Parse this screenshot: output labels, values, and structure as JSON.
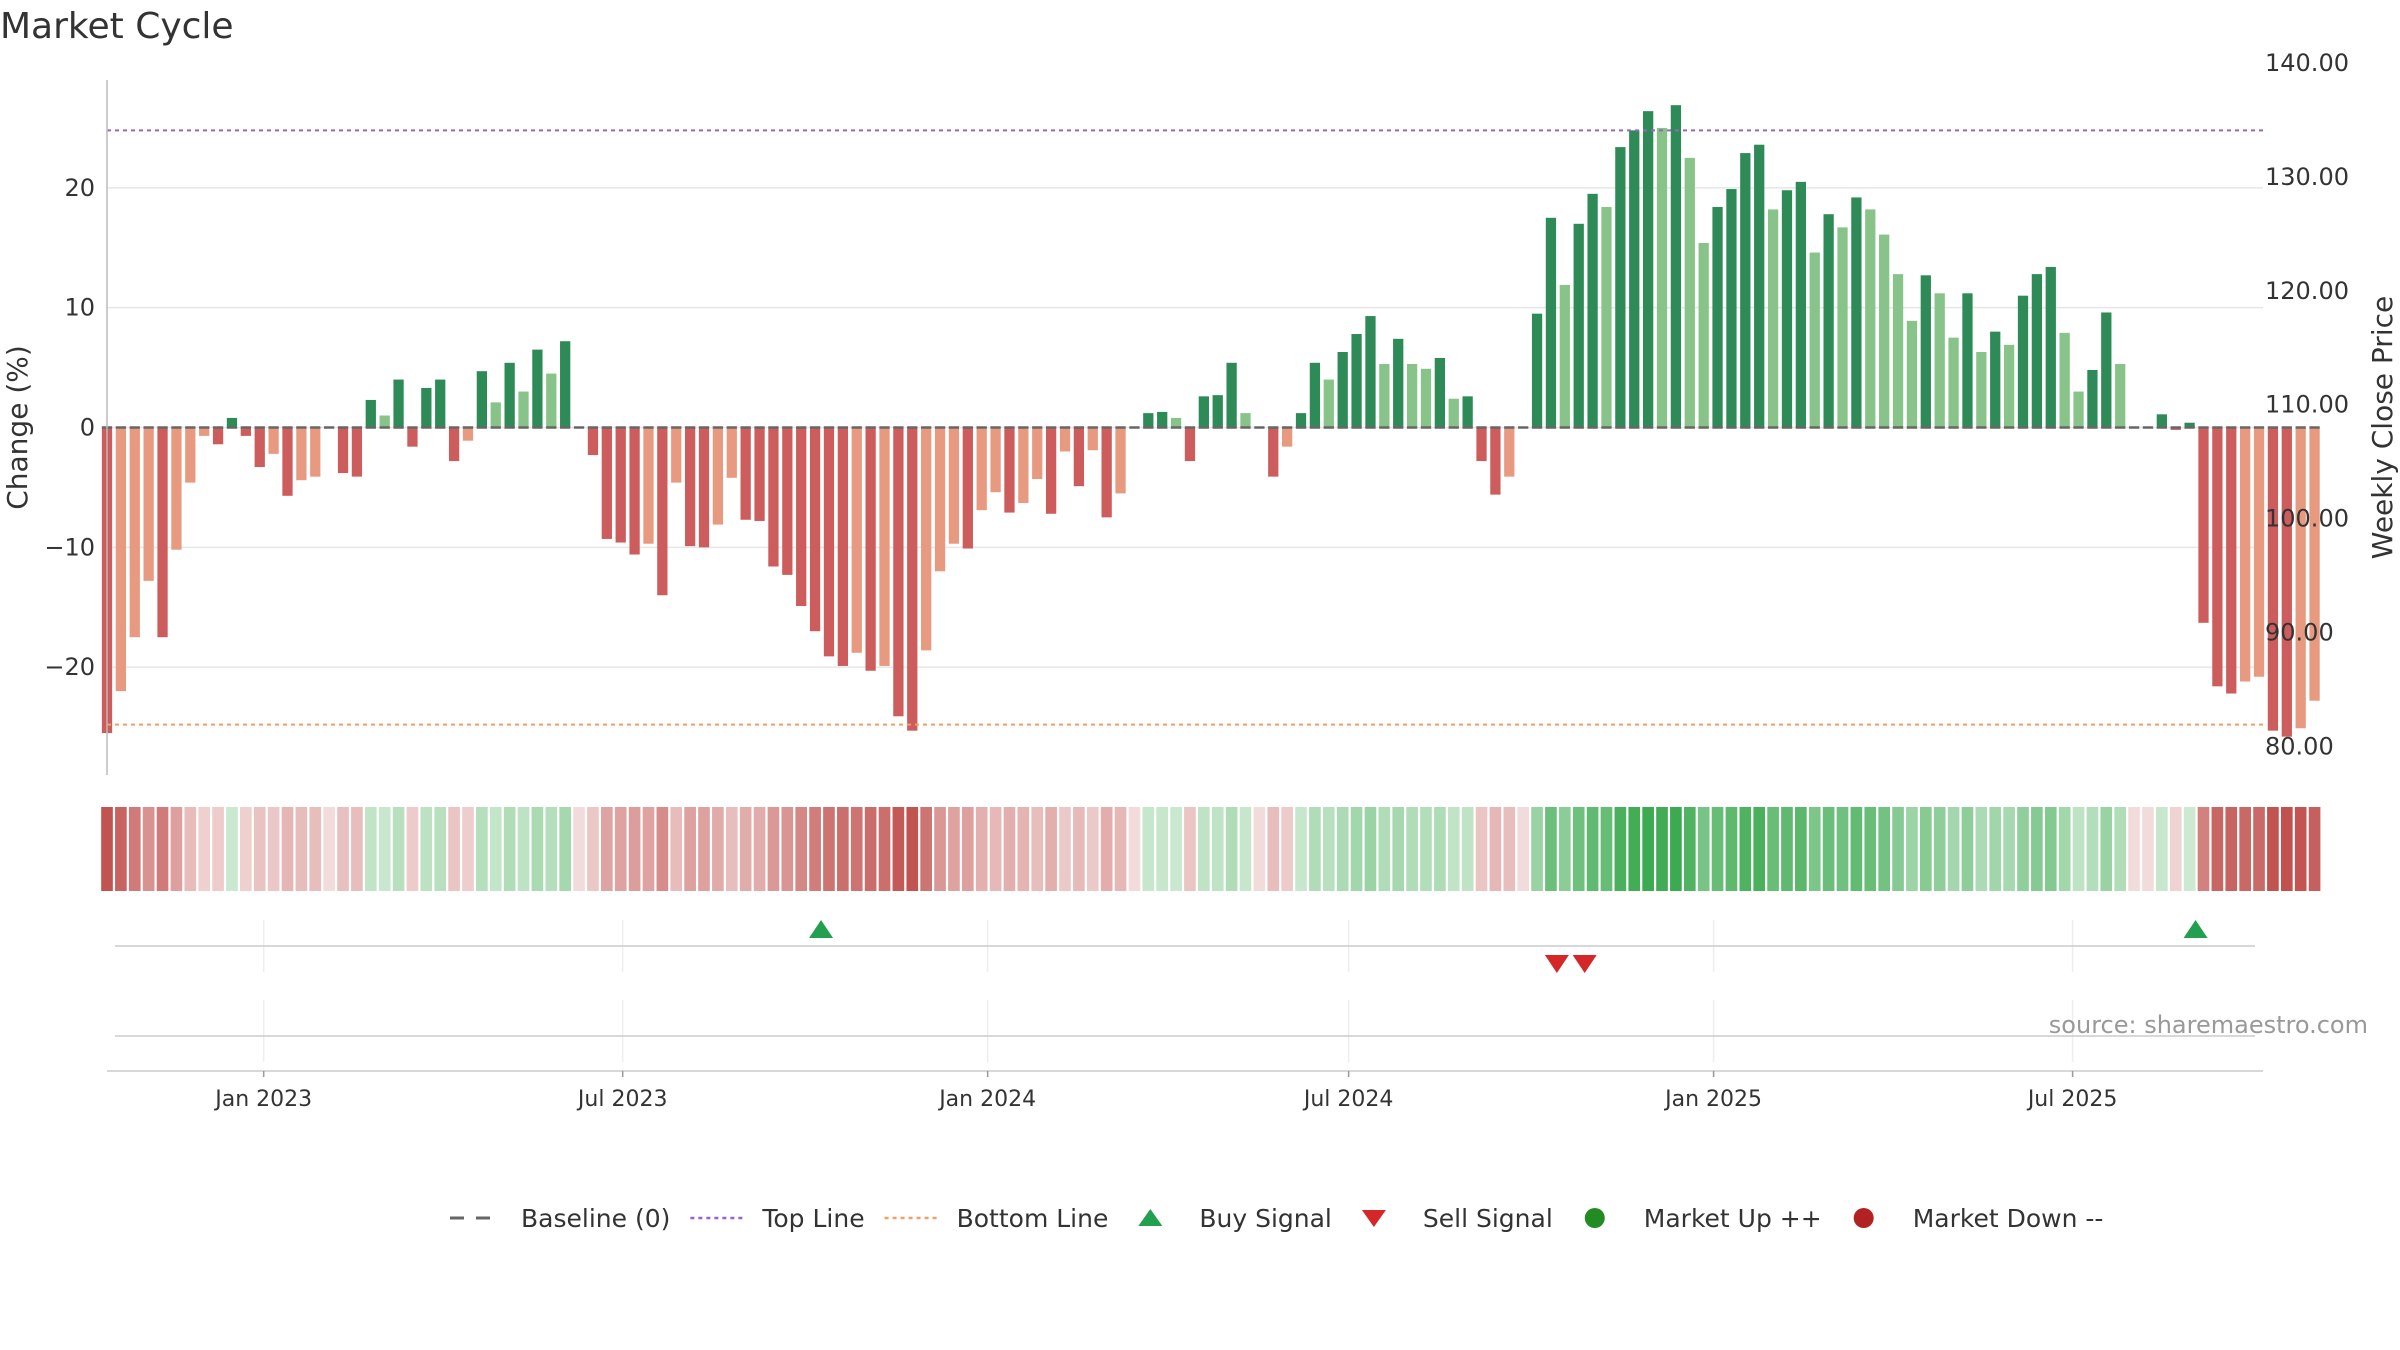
{
  "chart_data": {
    "type": "bar",
    "title": "Market Cycle",
    "ylabel": "Change (%)",
    "y2label": "Weekly Close Price",
    "ylim": [
      -29,
      29
    ],
    "y2lim": [
      77.5,
      138.5
    ],
    "yticks": [
      -20,
      -10,
      0,
      10,
      20
    ],
    "yticklabels": [
      "−20",
      "−10",
      "0",
      "10",
      "20"
    ],
    "y2ticks": [
      80,
      90,
      100,
      110,
      120,
      130,
      140
    ],
    "y2ticklabels": [
      "80.00",
      "90.00",
      "100.00",
      "110.00",
      "120.00",
      "130.00",
      "140.00"
    ],
    "top_line": 24.8,
    "bottom_line": -24.8,
    "x_start": "2022-10-14",
    "x_end": "2025-10-05",
    "xticks": [
      {
        "date": "2023-01-01",
        "label": "Jan 2023"
      },
      {
        "date": "2023-07-01",
        "label": "Jul 2023"
      },
      {
        "date": "2024-01-01",
        "label": "Jan 2024"
      },
      {
        "date": "2024-07-01",
        "label": "Jul 2024"
      },
      {
        "date": "2025-01-01",
        "label": "Jan 2025"
      },
      {
        "date": "2025-07-01",
        "label": "Jul 2025"
      }
    ],
    "first_week": "2022-10-14",
    "weekly_change": [
      -25.5,
      -22.0,
      -17.5,
      -12.8,
      -17.5,
      -10.2,
      -4.6,
      -0.7,
      -1.4,
      0.8,
      -0.7,
      -3.3,
      -2.2,
      -5.7,
      -4.4,
      -4.1,
      0,
      -3.8,
      -4.1,
      2.3,
      1.0,
      4.0,
      -1.6,
      3.3,
      4.0,
      -2.8,
      -1.1,
      4.7,
      2.1,
      5.4,
      3.0,
      6.5,
      4.5,
      7.2,
      0,
      -2.3,
      -9.3,
      -9.6,
      -10.6,
      -9.7,
      -14.0,
      -4.6,
      -9.9,
      -10.0,
      -8.1,
      -4.2,
      -7.7,
      -7.8,
      -11.6,
      -12.3,
      -14.9,
      -17.0,
      -19.1,
      -19.9,
      -18.8,
      -20.3,
      -19.9,
      -24.1,
      -25.3,
      -18.6,
      -12.0,
      -9.7,
      -10.1,
      -6.9,
      -5.4,
      -7.1,
      -6.3,
      -4.3,
      -7.2,
      -2.0,
      -4.9,
      -1.9,
      -7.5,
      -5.5,
      0,
      1.2,
      1.3,
      0.8,
      -2.8,
      2.6,
      2.7,
      5.4,
      1.2,
      0,
      -4.1,
      -1.6,
      1.2,
      5.4,
      4.0,
      6.3,
      7.8,
      9.3,
      5.3,
      7.4,
      5.3,
      4.9,
      5.8,
      2.4,
      2.6,
      -2.8,
      -5.6,
      -4.1,
      0,
      9.5,
      17.5,
      11.9,
      17.0,
      19.5,
      18.4,
      23.4,
      24.8,
      26.4,
      25.0,
      26.9,
      22.5,
      15.4,
      18.4,
      19.9,
      22.9,
      23.6,
      18.2,
      19.8,
      20.5,
      14.6,
      17.8,
      16.7,
      19.2,
      18.2,
      16.1,
      12.8,
      8.9,
      12.7,
      11.2,
      7.5,
      11.2,
      6.3,
      8.0,
      6.9,
      11.0,
      12.8,
      13.4,
      7.9,
      3.0,
      4.8,
      9.6,
      5.3,
      0,
      0,
      1.1,
      -0.2,
      0.4,
      -16.3,
      -21.6,
      -22.2,
      -21.2,
      -20.8,
      -25.3,
      -25.8,
      -25.1,
      -22.8
    ],
    "signals": [
      {
        "type": "buy",
        "date": "2023-10-09"
      },
      {
        "type": "sell",
        "date": "2024-10-14"
      },
      {
        "type": "sell",
        "date": "2024-10-28"
      },
      {
        "type": "buy",
        "date": "2025-09-01"
      }
    ]
  },
  "source_text": "source: sharemaestro.com",
  "legend": [
    {
      "key": "baseline",
      "label": "Baseline (0)",
      "icon": "dash-line",
      "color": "#666666"
    },
    {
      "key": "top",
      "label": "Top Line",
      "icon": "dotted-line",
      "color": "#9467bd"
    },
    {
      "key": "bottom",
      "label": "Bottom Line",
      "icon": "dotted-line",
      "color": "#f0a060"
    },
    {
      "key": "buy",
      "label": "Buy Signal",
      "icon": "triangle-up",
      "color": "#22a050"
    },
    {
      "key": "sell",
      "label": "Sell Signal",
      "icon": "triangle-down",
      "color": "#d62728"
    },
    {
      "key": "up",
      "label": "Market Up ++",
      "icon": "circle",
      "color": "#228b22"
    },
    {
      "key": "down",
      "label": "Market Down --",
      "icon": "circle",
      "color": "#b22222"
    }
  ]
}
